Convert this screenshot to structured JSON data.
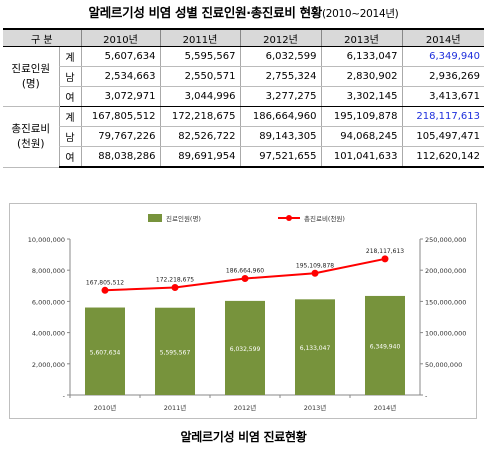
{
  "title": "알레르기성 비염 성별 진료인원·총진료비 현황",
  "title_period": "(2010~2014년)",
  "table": {
    "header": [
      "구 분",
      "2010년",
      "2011년",
      "2012년",
      "2013년",
      "2014년"
    ],
    "groups": [
      {
        "label_line1": "진료인원",
        "label_line2": "(명)",
        "rows": [
          {
            "sub": "계",
            "values": [
              "5,607,634",
              "5,595,567",
              "6,032,599",
              "6,133,047",
              "6,349,940"
            ]
          },
          {
            "sub": "남",
            "values": [
              "2,534,663",
              "2,550,571",
              "2,755,324",
              "2,830,902",
              "2,936,269"
            ]
          },
          {
            "sub": "여",
            "values": [
              "3,072,971",
              "3,044,996",
              "3,277,275",
              "3,302,145",
              "3,413,671"
            ]
          }
        ]
      },
      {
        "label_line1": "총진료비",
        "label_line2": "(천원)",
        "rows": [
          {
            "sub": "계",
            "values": [
              "167,805,512",
              "172,218,675",
              "186,664,960",
              "195,109,878",
              "218,117,613"
            ]
          },
          {
            "sub": "남",
            "values": [
              "79,767,226",
              "82,526,722",
              "89,143,305",
              "94,068,245",
              "105,497,471"
            ]
          },
          {
            "sub": "여",
            "values": [
              "88,038,286",
              "89,691,954",
              "97,521,655",
              "101,041,633",
              "112,620,142"
            ]
          }
        ]
      }
    ],
    "highlight_color": "#1f2fdc"
  },
  "chart_data": {
    "type": "bar",
    "categories": [
      "2010년",
      "2011년",
      "2012년",
      "2013년",
      "2014년"
    ],
    "series": [
      {
        "name": "진료인원(명)",
        "type": "bar",
        "axis": "left",
        "color": "#77933c",
        "values": [
          5607634,
          5595567,
          6032599,
          6133047,
          6349940
        ],
        "labels": [
          "5,607,634",
          "5,595,567",
          "6,032,599",
          "6,133,047",
          "6,349,940"
        ]
      },
      {
        "name": "총진료비(천원)",
        "type": "line",
        "axis": "right",
        "color": "#ff0000",
        "values": [
          167805512,
          172218675,
          186664960,
          195109878,
          218117613
        ],
        "labels": [
          "167,805,512",
          "172,218,675",
          "186,664,960",
          "195,109,878",
          "218,117,613"
        ]
      }
    ],
    "ylim_left": [
      0,
      10000000
    ],
    "ylim_right": [
      0,
      250000000
    ],
    "yticks_left": [
      "-",
      "2,000,000",
      "4,000,000",
      "6,000,000",
      "8,000,000",
      "10,000,000"
    ],
    "yticks_right": [
      "-",
      "50,000,000",
      "100,000,000",
      "150,000,000",
      "200,000,000",
      "250,000,000"
    ],
    "legend_position": "top",
    "grid": false,
    "caption": "알레르기성 비염 진료현황"
  }
}
